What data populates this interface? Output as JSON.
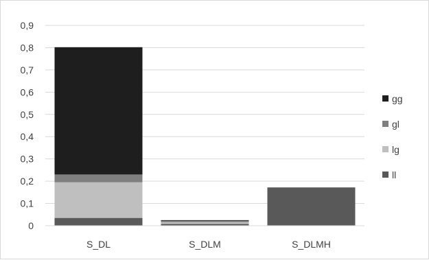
{
  "chart_data": {
    "type": "bar",
    "stacked": true,
    "categories": [
      "S_DL",
      "S_DLM",
      "S_DLMH"
    ],
    "series": [
      {
        "name": "ll",
        "color": "#595959",
        "values": [
          0.035,
          0.008,
          0.172
        ]
      },
      {
        "name": "lg",
        "color": "#bfbfbf",
        "values": [
          0.16,
          0.008,
          0.0
        ]
      },
      {
        "name": "gl",
        "color": "#7f7f7f",
        "values": [
          0.035,
          0.006,
          0.0
        ]
      },
      {
        "name": "gg",
        "color": "#1e1e1e",
        "values": [
          0.572,
          0.003,
          0.0
        ]
      }
    ],
    "legend_order": [
      "gg",
      "gl",
      "lg",
      "ll"
    ],
    "ylim": [
      0,
      0.9
    ],
    "yticks": [
      "0",
      "0,1",
      "0,2",
      "0,3",
      "0,4",
      "0,5",
      "0,6",
      "0,7",
      "0,8",
      "0,9"
    ],
    "grid": true,
    "legend_position": "right"
  }
}
